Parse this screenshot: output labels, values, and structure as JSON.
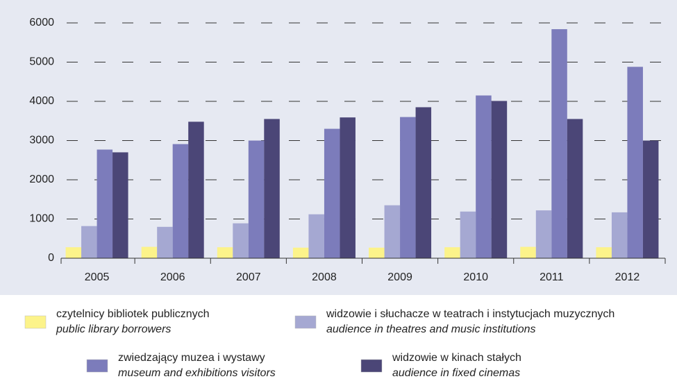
{
  "chart_data": {
    "type": "bar",
    "categories": [
      "2005",
      "2006",
      "2007",
      "2008",
      "2009",
      "2010",
      "2011",
      "2012"
    ],
    "series": [
      {
        "name": "czytelnicy bibliotek publicznych",
        "name_en": "public library borrowers",
        "color": "#fcf38a",
        "values": [
          280,
          290,
          280,
          270,
          270,
          280,
          290,
          280
        ]
      },
      {
        "name": "widzowie i słuchacze w teatrach i instytucjach muzycznych",
        "name_en": "audience in theatres and music institutions",
        "color": "#a5a8d2",
        "values": [
          820,
          800,
          890,
          1120,
          1350,
          1190,
          1220,
          1170
        ]
      },
      {
        "name": "zwiedzający muzea i wystawy",
        "name_en": "museum and exhibitions visitors",
        "color": "#7c7cbb",
        "values": [
          2770,
          2910,
          3000,
          3300,
          3600,
          4150,
          5840,
          4880
        ]
      },
      {
        "name": "widzowie w kinach stałych",
        "name_en": "audience in fixed cinemas",
        "color": "#4b4677",
        "values": [
          2700,
          3480,
          3550,
          3590,
          3850,
          4010,
          3550,
          3000
        ]
      }
    ],
    "ylim": [
      0,
      6000
    ],
    "yticks": [
      0,
      1000,
      2000,
      3000,
      4000,
      5000,
      6000
    ],
    "grid": true
  }
}
